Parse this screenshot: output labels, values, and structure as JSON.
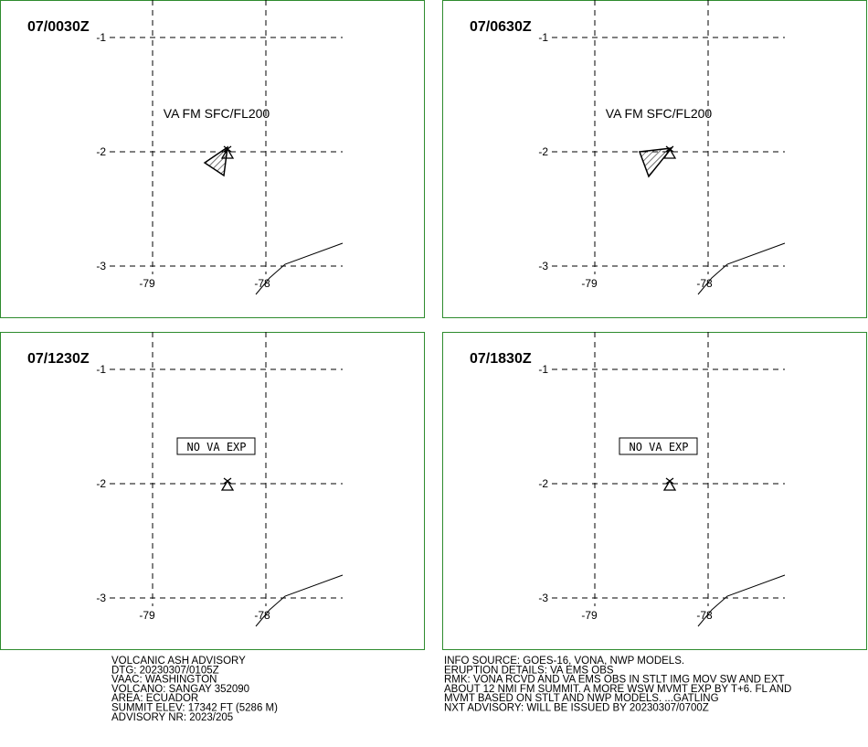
{
  "grid": {
    "lat_labels": [
      "-1",
      "-2",
      "-3"
    ],
    "lon_labels": [
      "-79",
      "-78"
    ]
  },
  "panels": [
    {
      "title": "07/0030Z",
      "text": "VA FM SFC/FL200"
    },
    {
      "title": "07/0630Z",
      "text": "VA FM SFC/FL200"
    },
    {
      "title": "07/1230Z",
      "text": "NO VA EXP"
    },
    {
      "title": "07/1830Z",
      "text": "NO VA EXP"
    }
  ],
  "advisory_left": [
    "VOLCANIC ASH ADVISORY",
    "DTG: 20230307/0105Z",
    "VAAC: WASHINGTON",
    "VOLCANO: SANGAY 352090",
    "AREA: ECUADOR",
    "SUMMIT ELEV: 17342 FT (5286 M)",
    "ADVISORY NR: 2023/205"
  ],
  "advisory_right": [
    "INFO SOURCE: GOES-16, VONA, NWP MODELS.",
    "ERUPTION DETAILS: VA EMS OBS",
    "RMK: VONA RCVD AND VA EMS OBS IN STLT IMG MOV SW AND EXT",
    "ABOUT 12 NMI FM SUMMIT. A MORE WSW MVMT EXP BY T+6. FL AND",
    "MVMT BASED ON STLT AND NWP MODELS. ...GATLING",
    "NXT ADVISORY: WILL BE ISSUED BY 20230307/0700Z"
  ]
}
